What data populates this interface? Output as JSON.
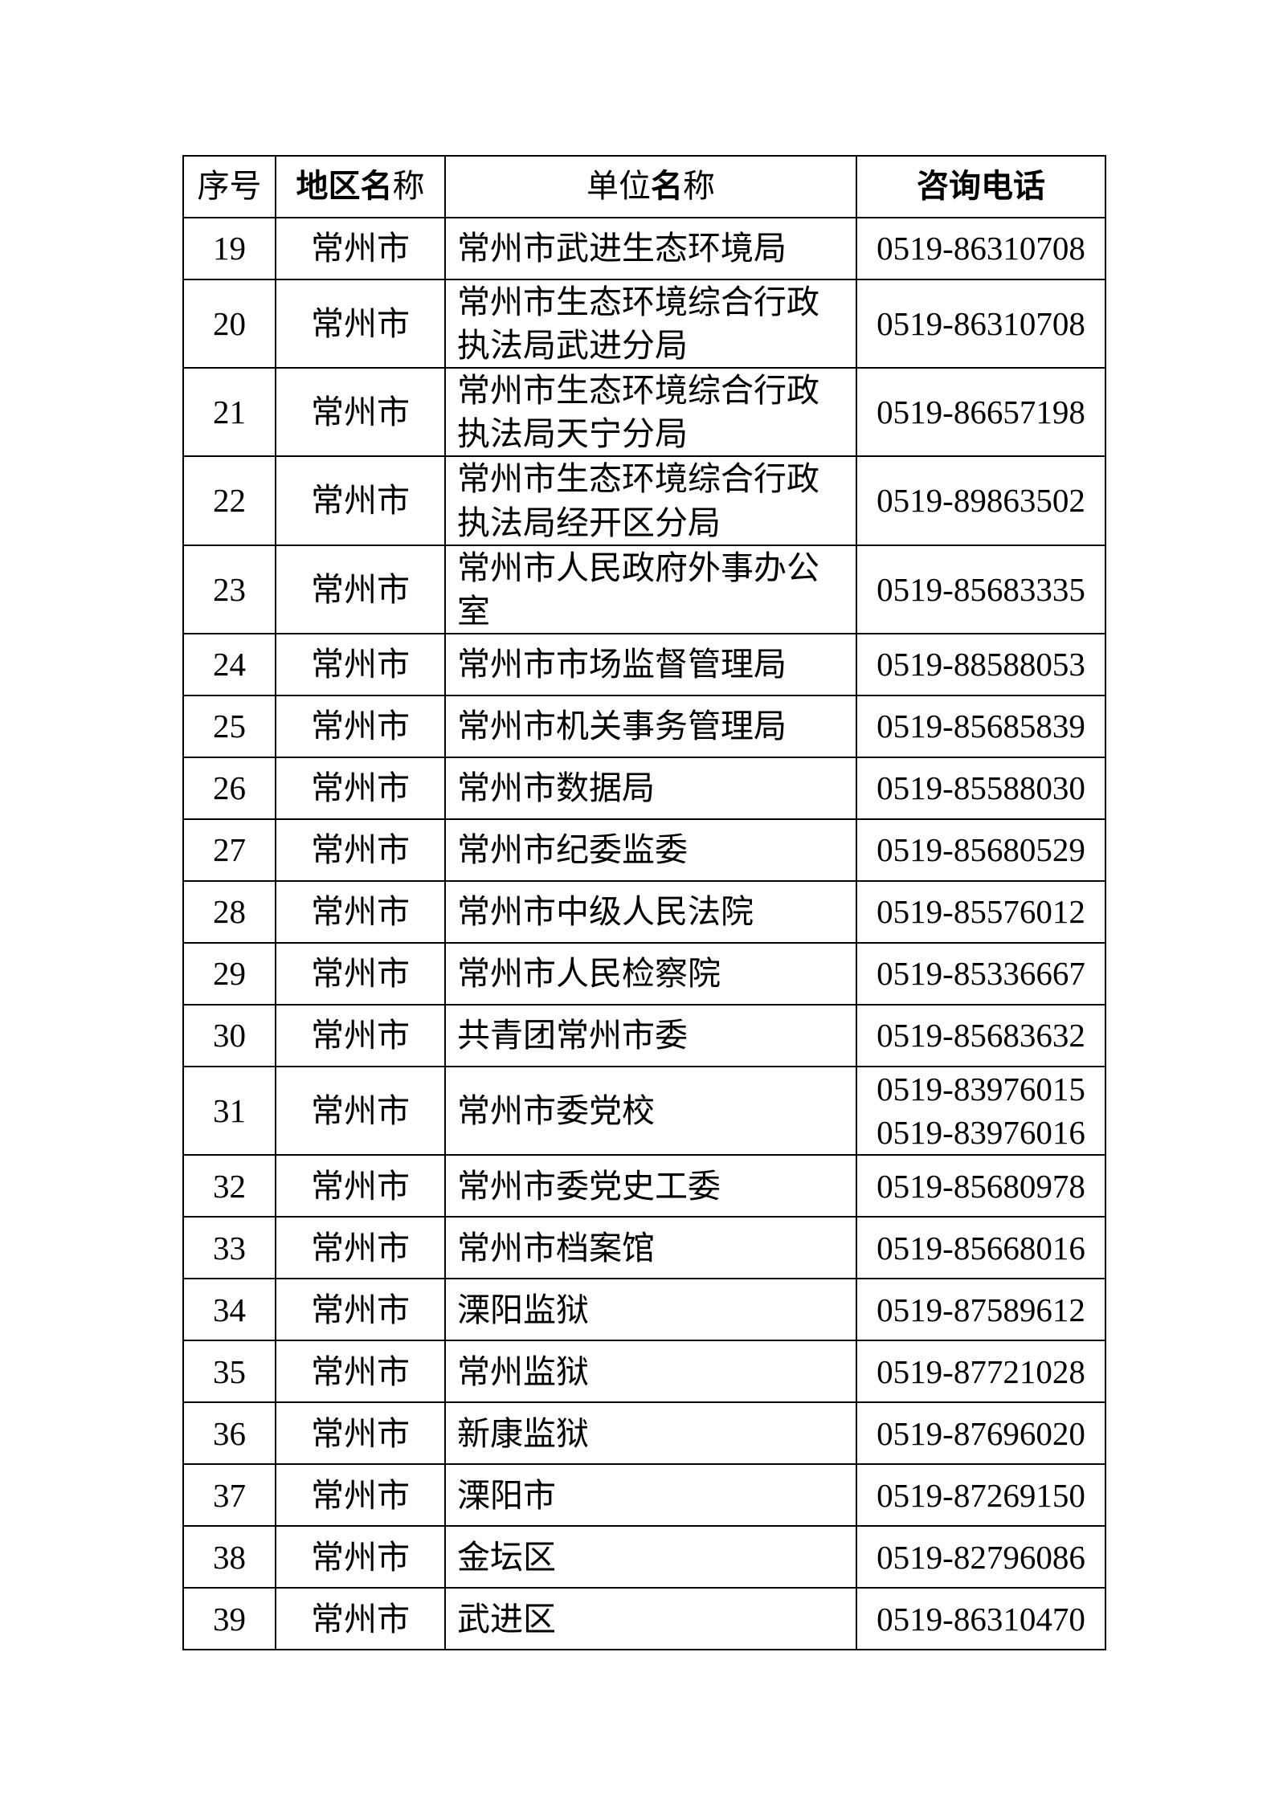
{
  "table": {
    "header": {
      "seq_label": "序号",
      "region_bold": "地区名",
      "region_rest": "称",
      "unit_pre": "单位",
      "unit_bold": "名",
      "unit_rest": "称",
      "phone_label": "咨询电话"
    },
    "rows": [
      {
        "seq": "19",
        "region": "常州市",
        "unit": "常州市武进生态环境局",
        "phone": "0519-86310708"
      },
      {
        "seq": "20",
        "region": "常州市",
        "unit": "常州市生态环境综合行政执法局武进分局",
        "phone": "0519-86310708"
      },
      {
        "seq": "21",
        "region": "常州市",
        "unit": "常州市生态环境综合行政执法局天宁分局",
        "phone": "0519-86657198"
      },
      {
        "seq": "22",
        "region": "常州市",
        "unit": "常州市生态环境综合行政执法局经开区分局",
        "phone": "0519-89863502"
      },
      {
        "seq": "23",
        "region": "常州市",
        "unit": "常州市人民政府外事办公室",
        "phone": "0519-85683335"
      },
      {
        "seq": "24",
        "region": "常州市",
        "unit": "常州市市场监督管理局",
        "phone": "0519-88588053"
      },
      {
        "seq": "25",
        "region": "常州市",
        "unit": "常州市机关事务管理局",
        "phone": "0519-85685839"
      },
      {
        "seq": "26",
        "region": "常州市",
        "unit": "常州市数据局",
        "phone": "0519-85588030"
      },
      {
        "seq": "27",
        "region": "常州市",
        "unit": "常州市纪委监委",
        "phone": "0519-85680529"
      },
      {
        "seq": "28",
        "region": "常州市",
        "unit": "常州市中级人民法院",
        "phone": "0519-85576012"
      },
      {
        "seq": "29",
        "region": "常州市",
        "unit": "常州市人民检察院",
        "phone": "0519-85336667"
      },
      {
        "seq": "30",
        "region": "常州市",
        "unit": "共青团常州市委",
        "phone": "0519-85683632"
      },
      {
        "seq": "31",
        "region": "常州市",
        "unit": "常州市委党校",
        "phone": "0519-83976015\n0519-83976016"
      },
      {
        "seq": "32",
        "region": "常州市",
        "unit": "常州市委党史工委",
        "phone": "0519-85680978"
      },
      {
        "seq": "33",
        "region": "常州市",
        "unit": "常州市档案馆",
        "phone": "0519-85668016"
      },
      {
        "seq": "34",
        "region": "常州市",
        "unit": "溧阳监狱",
        "phone": "0519-87589612"
      },
      {
        "seq": "35",
        "region": "常州市",
        "unit": "常州监狱",
        "phone": "0519-87721028"
      },
      {
        "seq": "36",
        "region": "常州市",
        "unit": "新康监狱",
        "phone": "0519-87696020"
      },
      {
        "seq": "37",
        "region": "常州市",
        "unit": "溧阳市",
        "phone": "0519-87269150"
      },
      {
        "seq": "38",
        "region": "常州市",
        "unit": "金坛区",
        "phone": "0519-82796086"
      },
      {
        "seq": "39",
        "region": "常州市",
        "unit": "武进区",
        "phone": "0519-86310470"
      }
    ]
  }
}
